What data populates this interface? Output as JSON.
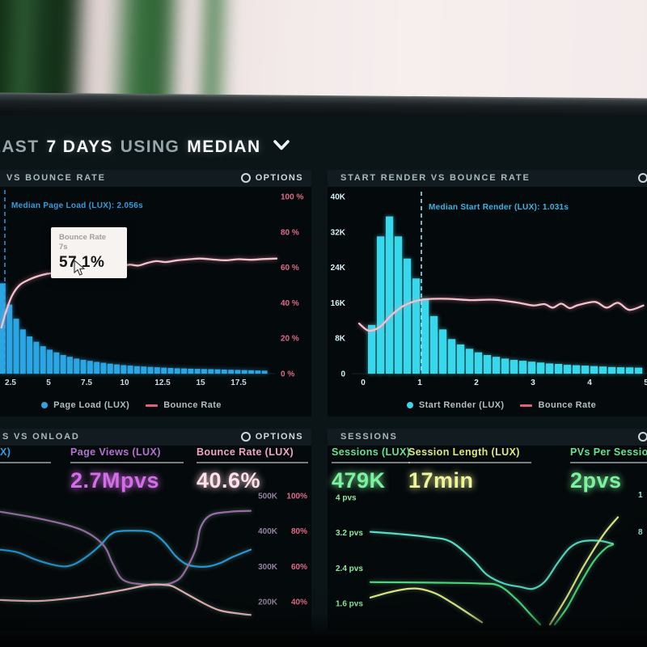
{
  "screen_header": {
    "parts": [
      {
        "text": "LAST",
        "emphasis": false
      },
      {
        "text": "7 DAYS",
        "emphasis": true
      },
      {
        "text": "USING",
        "emphasis": false
      },
      {
        "text": "MEDIAN",
        "emphasis": true
      }
    ]
  },
  "panels": {
    "top_left": {
      "title": "VS BOUNCE RATE",
      "options_label": "OPTIONS",
      "median_annotation": "Median Page Load (LUX): 2.056s",
      "tooltip": {
        "series": "Bounce Rate",
        "x_value": "7s",
        "value": "57.1%"
      },
      "legend": [
        {
          "label": "Page Load (LUX)",
          "marker": "dot",
          "color": "#2aa6e4"
        },
        {
          "label": "Bounce Rate",
          "marker": "dash",
          "color": "#e1607c"
        }
      ]
    },
    "top_right": {
      "title": "START RENDER VS BOUNCE RATE",
      "median_annotation": "Median Start Render (LUX): 1.031s",
      "legend": [
        {
          "label": "Start Render (LUX)",
          "marker": "dot",
          "color": "#38d8ec"
        },
        {
          "label": "Bounce Rate",
          "marker": "dash",
          "color": "#e1607c"
        }
      ]
    },
    "bottom_left": {
      "title": "S VS ONLOAD",
      "options_label": "OPTIONS",
      "metrics": [
        {
          "label": "(LUX)",
          "value": "",
          "label_color": "#2e9fe0",
          "value_color": "#2e9fe0"
        },
        {
          "label": "Page Views (LUX)",
          "value": "2.7Mpvs",
          "label_color": "#b472cc",
          "value_color": "#d46ee8"
        },
        {
          "label": "Bounce Rate (LUX)",
          "value": "40.6%",
          "label_color": "#f0a6c0",
          "value_color": "#ffdfe8"
        }
      ]
    },
    "bottom_right": {
      "title": "SESSIONS",
      "metrics": [
        {
          "label": "Sessions (LUX)",
          "value": "479K",
          "label_color": "#66e392",
          "value_color": "#7df29e"
        },
        {
          "label": "Session Length (LUX)",
          "value": "17min",
          "label_color": "#dcea7e",
          "value_color": "#eef59c"
        },
        {
          "label": "PVs Per Sessio",
          "value": "2pvs",
          "label_color": "#66e392",
          "value_color": "#7df29e"
        }
      ],
      "right_axis_fragments": [
        {
          "text": "1"
        },
        {
          "text": "8"
        }
      ]
    }
  },
  "chart_data": [
    {
      "id": "page_load_vs_bounce_rate",
      "type": "bar",
      "title": "VS BOUNCE RATE",
      "x_axis": {
        "ticks": [
          2.5,
          5,
          7.5,
          10,
          12.5,
          15,
          17.5
        ],
        "unit": "s",
        "range": [
          2.0,
          20.2
        ]
      },
      "y_right_axis": {
        "ticks": [
          "100 %",
          "80 %",
          "60 %",
          "40 %",
          "20 %",
          "0 %"
        ],
        "range": [
          0,
          100
        ]
      },
      "median_line": {
        "x": 2.056,
        "label": "Median Page Load (LUX): 2.056s",
        "color": "#2b8fd4"
      },
      "bars": {
        "name": "Page Load (LUX)",
        "color": "#2aa6e4",
        "note": "relative heights 0-100, count axis not shown",
        "values": [
          51,
          39,
          31,
          25,
          21,
          18,
          15.5,
          13.5,
          12,
          10.5,
          9.5,
          8.5,
          7.8,
          7.2,
          6.6,
          6.1,
          5.6,
          5.2,
          4.8,
          4.5,
          4.2,
          4,
          3.8,
          3.6,
          3.4,
          3.2,
          3,
          2.9,
          2.8,
          2.7,
          2.6,
          2.5,
          2.4,
          2.3,
          2.2,
          2.1,
          2,
          1.9,
          1.8,
          1.7
        ]
      },
      "line": {
        "name": "Bounce Rate",
        "color": "#f4c2cc",
        "unit": "%",
        "points": [
          [
            1.9,
            26
          ],
          [
            2.2,
            35
          ],
          [
            2.6,
            44
          ],
          [
            3.1,
            50
          ],
          [
            3.7,
            53
          ],
          [
            4.3,
            55
          ],
          [
            5,
            56.5
          ],
          [
            6,
            57
          ],
          [
            7,
            57.1
          ],
          [
            7.7,
            58.2
          ],
          [
            8.4,
            59
          ],
          [
            9,
            58.4
          ],
          [
            9.6,
            60
          ],
          [
            10.3,
            61.5
          ],
          [
            10.9,
            61
          ],
          [
            11.5,
            62.5
          ],
          [
            12.1,
            63.5
          ],
          [
            12.7,
            63
          ],
          [
            13.5,
            64
          ],
          [
            14.3,
            64.6
          ],
          [
            15,
            65
          ],
          [
            15.9,
            64.4
          ],
          [
            16.7,
            64
          ],
          [
            17.5,
            64.6
          ],
          [
            18.3,
            64.3
          ],
          [
            19.1,
            64.7
          ],
          [
            20,
            65
          ]
        ]
      },
      "tooltip_point": {
        "x": 7,
        "y": 57.1
      }
    },
    {
      "id": "start_render_vs_bounce_rate",
      "type": "bar",
      "title": "START RENDER VS BOUNCE RATE",
      "x_axis": {
        "ticks": [
          0,
          1,
          2,
          3,
          4,
          5
        ],
        "unit": "s",
        "range": [
          -0.1,
          5.0
        ]
      },
      "y_left_axis": {
        "ticks": [
          "40K",
          "32K",
          "24K",
          "16K",
          "8K",
          "0"
        ],
        "range": [
          0,
          40000
        ]
      },
      "median_line": {
        "x": 1.031,
        "label": "Median Start Render (LUX): 1.031s",
        "color": "#9ee2ef"
      },
      "bars": {
        "name": "Start Render (LUX)",
        "color": "#38d8ec",
        "unit": "thousands",
        "values": [
          11,
          31,
          35.5,
          31,
          26,
          21.5,
          17,
          13,
          10,
          7.8,
          6.6,
          5.6,
          4.8,
          4.2,
          3.8,
          3.4,
          3.1,
          2.9,
          2.7,
          2.5,
          2.3,
          2.2,
          2,
          1.9,
          1.8,
          1.7,
          1.6,
          1.5,
          1.45,
          1.4,
          1.35
        ]
      },
      "line": {
        "name": "Bounce Rate",
        "color": "#f4c2cc",
        "unit": "thousands-equivalent",
        "points": [
          [
            -0.07,
            11.3
          ],
          [
            0.1,
            9.7
          ],
          [
            0.3,
            10.6
          ],
          [
            0.5,
            13.2
          ],
          [
            0.7,
            15.2
          ],
          [
            0.9,
            16.3
          ],
          [
            1.1,
            16.8
          ],
          [
            1.5,
            16.9
          ],
          [
            1.9,
            16.6
          ],
          [
            2.3,
            16.7
          ],
          [
            2.7,
            16.1
          ],
          [
            3,
            15.4
          ],
          [
            3.2,
            15.7
          ],
          [
            3.35,
            14.9
          ],
          [
            3.5,
            15.8
          ],
          [
            3.65,
            14.8
          ],
          [
            3.8,
            15.5
          ],
          [
            4.1,
            16.2
          ],
          [
            4.3,
            14.9
          ],
          [
            4.5,
            16
          ],
          [
            4.7,
            14.4
          ],
          [
            4.95,
            15.4
          ]
        ]
      }
    },
    {
      "id": "onload_trends",
      "type": "line",
      "title": "S VS ONLOAD",
      "y_right_axis": {
        "k_ticks": [
          "500K",
          "400K",
          "300K",
          "200K"
        ],
        "pct_ticks": [
          "100%",
          "80%",
          "60%",
          "40%"
        ],
        "pct_values": [
          100,
          80,
          60,
          40
        ]
      },
      "series": [
        {
          "name": "blue-line",
          "color": "#2596dc",
          "unit": "%",
          "points": [
            [
              0,
              69.5
            ],
            [
              0.07,
              68
            ],
            [
              0.14,
              64
            ],
            [
              0.21,
              61
            ],
            [
              0.26,
              60
            ],
            [
              0.3,
              61.5
            ],
            [
              0.35,
              66
            ],
            [
              0.4,
              72
            ],
            [
              0.44,
              78
            ],
            [
              0.48,
              80
            ],
            [
              0.58,
              80
            ],
            [
              0.62,
              78
            ],
            [
              0.66,
              73
            ],
            [
              0.7,
              66
            ],
            [
              0.74,
              61.5
            ],
            [
              0.78,
              60
            ],
            [
              0.83,
              60
            ],
            [
              0.88,
              62
            ],
            [
              0.93,
              65.5
            ],
            [
              1,
              69.5
            ]
          ]
        },
        {
          "name": "purple-line",
          "color": "#9c6aa8",
          "unit": "%",
          "points": [
            [
              0,
              91
            ],
            [
              0.16,
              87
            ],
            [
              0.32,
              81
            ],
            [
              0.41,
              72.5
            ],
            [
              0.45,
              61.5
            ],
            [
              0.49,
              52.5
            ],
            [
              0.56,
              50
            ],
            [
              0.64,
              49.7
            ],
            [
              0.69,
              51
            ],
            [
              0.73,
              55.5
            ],
            [
              0.78,
              69.5
            ],
            [
              0.8,
              82
            ],
            [
              0.84,
              89
            ],
            [
              0.92,
              91
            ],
            [
              1,
              91.5
            ]
          ]
        },
        {
          "name": "pink-line",
          "color": "#eeb4bc",
          "unit": "%",
          "points": [
            [
              0,
              41
            ],
            [
              0.16,
              40.5
            ],
            [
              0.32,
              42.7
            ],
            [
              0.48,
              46.4
            ],
            [
              0.6,
              49.7
            ],
            [
              0.66,
              49.5
            ],
            [
              0.69,
              48.7
            ],
            [
              0.75,
              44
            ],
            [
              0.82,
              38.6
            ],
            [
              0.88,
              35
            ],
            [
              0.97,
              33
            ],
            [
              1,
              32.6
            ]
          ]
        }
      ]
    },
    {
      "id": "sessions_trends",
      "type": "line",
      "title": "SESSIONS",
      "y_left_axis": {
        "ticks": [
          "4 pvs",
          "3.2 pvs",
          "2.4 pvs",
          "1.6 pvs"
        ],
        "values": [
          4,
          3.2,
          2.4,
          1.6
        ]
      },
      "series": [
        {
          "name": "teal-line",
          "color": "#56dcc8",
          "unit": "pvs",
          "segments": [
            [
              [
                0,
                3.22
              ],
              [
                0.12,
                3.17
              ],
              [
                0.24,
                3.1
              ],
              [
                0.33,
                3.0
              ],
              [
                0.42,
                2.6
              ],
              [
                0.48,
                2.25
              ],
              [
                0.55,
                2.05
              ],
              [
                0.62,
                1.97
              ],
              [
                0.67,
                1.93
              ],
              [
                0.72,
                2.1
              ],
              [
                0.77,
                2.5
              ],
              [
                0.82,
                2.85
              ],
              [
                0.87,
                3.0
              ],
              [
                0.94,
                3.02
              ],
              [
                1,
                2.95
              ]
            ]
          ]
        },
        {
          "name": "green-line",
          "color": "#4ae07e",
          "unit": "pvs",
          "segments": [
            [
              [
                0,
                2.08
              ],
              [
                0.25,
                2.07
              ],
              [
                0.45,
                2.05
              ],
              [
                0.53,
                2.0
              ],
              [
                0.6,
                1.7
              ],
              [
                0.66,
                1.35
              ],
              [
                0.7,
                1.12
              ]
            ],
            [
              [
                0.76,
                1.12
              ],
              [
                0.81,
                1.5
              ],
              [
                0.86,
                2.0
              ],
              [
                0.92,
                2.55
              ],
              [
                0.97,
                2.85
              ],
              [
                1,
                2.93
              ]
            ]
          ]
        },
        {
          "name": "yellow-line",
          "color": "#e4ec86",
          "unit": "pvs",
          "segments": [
            [
              [
                0,
                1.73
              ],
              [
                0.07,
                1.84
              ],
              [
                0.14,
                1.92
              ],
              [
                0.2,
                1.93
              ],
              [
                0.27,
                1.82
              ],
              [
                0.34,
                1.6
              ],
              [
                0.41,
                1.35
              ],
              [
                0.46,
                1.17
              ]
            ],
            [
              [
                0.74,
                1.12
              ],
              [
                0.81,
                1.75
              ],
              [
                0.88,
                2.45
              ],
              [
                0.96,
                3.15
              ],
              [
                1.02,
                3.55
              ]
            ]
          ]
        }
      ]
    }
  ]
}
